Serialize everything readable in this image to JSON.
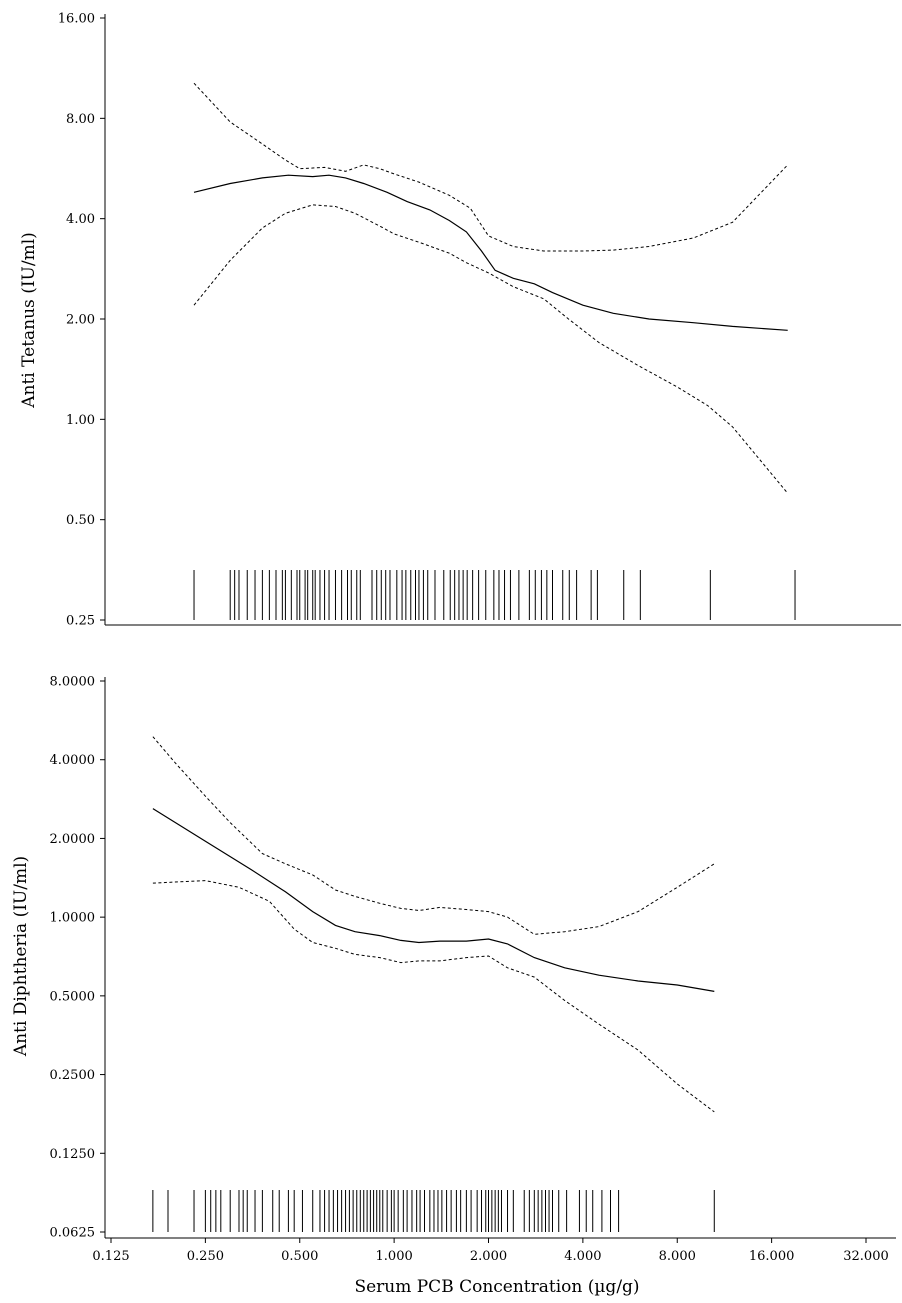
{
  "chart_data": [
    {
      "type": "line",
      "ylabel": "Anti Tetanus (IU/ml)",
      "y_scale": "log2",
      "ylim": [
        0.25,
        16
      ],
      "y_ticks": [
        "0.25",
        "0.50",
        "1.00",
        "2.00",
        "4.00",
        "8.00",
        "16.00"
      ],
      "x_scale": "log2",
      "xlim": [
        0.125,
        32
      ],
      "series": [
        {
          "style": "solid",
          "x": [
            0.23,
            0.3,
            0.38,
            0.46,
            0.55,
            0.62,
            0.7,
            0.8,
            0.95,
            1.1,
            1.3,
            1.5,
            1.7,
            1.9,
            2.1,
            2.4,
            2.8,
            3.2,
            4.0,
            5.0,
            6.5,
            9.0,
            12.0,
            18.0
          ],
          "y": [
            4.8,
            5.1,
            5.3,
            5.4,
            5.35,
            5.4,
            5.3,
            5.1,
            4.8,
            4.5,
            4.25,
            3.95,
            3.65,
            3.2,
            2.8,
            2.65,
            2.55,
            2.4,
            2.2,
            2.08,
            2.0,
            1.95,
            1.9,
            1.85
          ]
        },
        {
          "style": "dashed",
          "x": [
            0.23,
            0.3,
            0.38,
            0.45,
            0.5,
            0.6,
            0.7,
            0.8,
            0.9,
            1.0,
            1.2,
            1.5,
            1.75,
            2.0,
            2.4,
            3.0,
            4.0,
            5.0,
            6.5,
            9.0,
            12.0,
            18.0
          ],
          "y": [
            10.2,
            7.8,
            6.7,
            6.0,
            5.65,
            5.7,
            5.55,
            5.8,
            5.65,
            5.45,
            5.15,
            4.7,
            4.3,
            3.55,
            3.3,
            3.2,
            3.2,
            3.22,
            3.3,
            3.5,
            3.9,
            5.8
          ]
        },
        {
          "style": "dashed",
          "x": [
            0.23,
            0.3,
            0.38,
            0.45,
            0.55,
            0.65,
            0.75,
            0.9,
            1.0,
            1.2,
            1.5,
            1.7,
            2.0,
            2.4,
            3.0,
            3.6,
            4.5,
            6.0,
            8.0,
            10.0,
            12.0,
            18.0
          ],
          "y": [
            2.2,
            3.0,
            3.75,
            4.15,
            4.4,
            4.35,
            4.15,
            3.8,
            3.6,
            3.4,
            3.15,
            2.95,
            2.75,
            2.5,
            2.3,
            2.0,
            1.7,
            1.45,
            1.25,
            1.1,
            0.95,
            0.6
          ]
        }
      ],
      "rug_x": [
        0.23,
        0.3,
        0.31,
        0.32,
        0.34,
        0.36,
        0.38,
        0.4,
        0.42,
        0.44,
        0.45,
        0.47,
        0.49,
        0.5,
        0.52,
        0.53,
        0.55,
        0.56,
        0.58,
        0.6,
        0.62,
        0.65,
        0.68,
        0.71,
        0.73,
        0.76,
        0.78,
        0.85,
        0.88,
        0.91,
        0.94,
        0.97,
        1.02,
        1.06,
        1.09,
        1.13,
        1.17,
        1.2,
        1.24,
        1.28,
        1.35,
        1.44,
        1.51,
        1.56,
        1.61,
        1.66,
        1.71,
        1.78,
        1.86,
        1.96,
        2.08,
        2.16,
        2.25,
        2.35,
        2.5,
        2.7,
        2.82,
        2.95,
        3.07,
        3.2,
        3.45,
        3.62,
        3.82,
        4.25,
        4.45,
        5.4,
        6.1,
        10.2,
        19.0
      ]
    },
    {
      "type": "line",
      "ylabel": "Anti Diphtheria (IU/ml)",
      "xlabel": "Serum PCB Concentration (µg/g)",
      "y_scale": "log2",
      "ylim": [
        0.0625,
        8
      ],
      "y_ticks": [
        "0.0625",
        "0.1250",
        "0.2500",
        "0.5000",
        "1.0000",
        "2.0000",
        "4.0000",
        "8.0000"
      ],
      "x_scale": "log2",
      "xlim": [
        0.125,
        32
      ],
      "x_ticks": [
        "0.125",
        "0.250",
        "0.500",
        "1.000",
        "2.000",
        "4.000",
        "8.000",
        "16.000",
        "32.000"
      ],
      "series": [
        {
          "style": "solid",
          "x": [
            0.17,
            0.25,
            0.35,
            0.45,
            0.55,
            0.65,
            0.75,
            0.9,
            1.05,
            1.2,
            1.4,
            1.7,
            2.0,
            2.3,
            2.8,
            3.5,
            4.5,
            6.0,
            8.0,
            10.5
          ],
          "y": [
            2.6,
            1.95,
            1.52,
            1.25,
            1.05,
            0.93,
            0.88,
            0.85,
            0.815,
            0.8,
            0.81,
            0.81,
            0.825,
            0.79,
            0.7,
            0.64,
            0.6,
            0.57,
            0.55,
            0.52
          ]
        },
        {
          "style": "dashed",
          "x": [
            0.17,
            0.2,
            0.25,
            0.3,
            0.38,
            0.45,
            0.55,
            0.65,
            0.75,
            0.9,
            1.05,
            1.2,
            1.4,
            1.7,
            2.0,
            2.3,
            2.8,
            3.5,
            4.5,
            6.0,
            8.0,
            10.5
          ],
          "y": [
            4.9,
            3.9,
            2.9,
            2.3,
            1.75,
            1.6,
            1.45,
            1.27,
            1.2,
            1.13,
            1.08,
            1.06,
            1.09,
            1.07,
            1.05,
            1.0,
            0.86,
            0.88,
            0.92,
            1.05,
            1.3,
            1.6
          ]
        },
        {
          "style": "dashed",
          "x": [
            0.17,
            0.25,
            0.32,
            0.4,
            0.48,
            0.55,
            0.65,
            0.75,
            0.9,
            1.05,
            1.2,
            1.4,
            1.7,
            2.0,
            2.3,
            2.8,
            3.5,
            4.5,
            6.0,
            8.0,
            10.5
          ],
          "y": [
            1.35,
            1.38,
            1.3,
            1.15,
            0.9,
            0.8,
            0.76,
            0.72,
            0.7,
            0.67,
            0.68,
            0.68,
            0.7,
            0.71,
            0.64,
            0.59,
            0.48,
            0.39,
            0.31,
            0.23,
            0.18
          ]
        }
      ],
      "rug_x": [
        0.17,
        0.19,
        0.23,
        0.25,
        0.26,
        0.27,
        0.28,
        0.3,
        0.32,
        0.33,
        0.34,
        0.36,
        0.38,
        0.41,
        0.43,
        0.46,
        0.48,
        0.51,
        0.55,
        0.58,
        0.6,
        0.62,
        0.64,
        0.66,
        0.68,
        0.7,
        0.72,
        0.74,
        0.76,
        0.78,
        0.8,
        0.82,
        0.84,
        0.86,
        0.88,
        0.9,
        0.92,
        0.95,
        0.98,
        1.0,
        1.03,
        1.07,
        1.1,
        1.14,
        1.18,
        1.21,
        1.25,
        1.3,
        1.34,
        1.38,
        1.42,
        1.47,
        1.52,
        1.58,
        1.63,
        1.7,
        1.76,
        1.84,
        1.9,
        1.96,
        2.0,
        2.05,
        2.1,
        2.15,
        2.2,
        2.3,
        2.4,
        2.6,
        2.7,
        2.8,
        2.88,
        2.96,
        3.04,
        3.12,
        3.2,
        3.35,
        3.55,
        3.9,
        4.1,
        4.3,
        4.6,
        4.9,
        5.2,
        10.5
      ]
    }
  ]
}
